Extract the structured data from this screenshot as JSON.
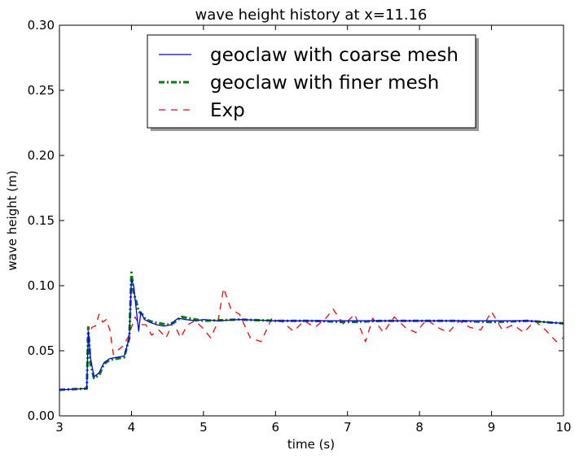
{
  "chart_data": {
    "type": "line",
    "title": "wave height history at x=11.16",
    "xlabel": "time (s)",
    "ylabel": "wave height (m)",
    "xlim": [
      3,
      10
    ],
    "ylim": [
      0.0,
      0.3
    ],
    "xticks": [
      "3",
      "4",
      "5",
      "6",
      "7",
      "8",
      "9",
      "10"
    ],
    "yticks": [
      "0.00",
      "0.05",
      "0.10",
      "0.15",
      "0.20",
      "0.25",
      "0.30"
    ],
    "grid": false,
    "legend_position": "top-center",
    "series": [
      {
        "name": "geoclaw with coarse mesh",
        "color": "#0000ff",
        "style": "solid",
        "x": [
          3.0,
          3.38,
          3.4,
          3.43,
          3.48,
          3.55,
          3.62,
          3.7,
          3.8,
          3.9,
          3.97,
          4.0,
          4.03,
          4.07,
          4.1,
          4.13,
          4.18,
          4.25,
          4.35,
          4.45,
          4.55,
          4.6,
          4.65,
          4.75,
          4.9,
          5.0,
          5.2,
          5.5,
          6.0,
          6.5,
          7.0,
          7.5,
          8.0,
          8.5,
          9.0,
          9.5,
          10.0
        ],
        "y": [
          0.02,
          0.021,
          0.065,
          0.045,
          0.03,
          0.033,
          0.041,
          0.044,
          0.045,
          0.046,
          0.06,
          0.105,
          0.1,
          0.08,
          0.065,
          0.08,
          0.074,
          0.072,
          0.07,
          0.069,
          0.07,
          0.073,
          0.075,
          0.074,
          0.073,
          0.074,
          0.073,
          0.074,
          0.073,
          0.073,
          0.073,
          0.073,
          0.073,
          0.073,
          0.073,
          0.073,
          0.071
        ]
      },
      {
        "name": "geoclaw with finer mesh",
        "color": "#008000",
        "style": "dash-dot",
        "x": [
          3.0,
          3.38,
          3.4,
          3.43,
          3.48,
          3.55,
          3.62,
          3.7,
          3.8,
          3.9,
          3.97,
          4.0,
          4.03,
          4.07,
          4.1,
          4.15,
          4.2,
          4.3,
          4.4,
          4.5,
          4.6,
          4.7,
          4.8,
          5.0,
          5.5,
          6.0,
          6.5,
          7.0,
          7.5,
          8.0,
          8.5,
          9.0,
          9.5,
          10.0
        ],
        "y": [
          0.02,
          0.021,
          0.068,
          0.04,
          0.029,
          0.031,
          0.04,
          0.043,
          0.044,
          0.045,
          0.06,
          0.11,
          0.095,
          0.087,
          0.08,
          0.078,
          0.074,
          0.072,
          0.071,
          0.07,
          0.072,
          0.076,
          0.075,
          0.073,
          0.074,
          0.073,
          0.073,
          0.072,
          0.073,
          0.073,
          0.073,
          0.072,
          0.073,
          0.071
        ]
      },
      {
        "name": "Exp",
        "color": "#ff0000",
        "style": "dashed",
        "x": [
          3.38,
          3.45,
          3.5,
          3.55,
          3.6,
          3.65,
          3.7,
          3.75,
          3.8,
          3.87,
          3.95,
          4.0,
          4.05,
          4.1,
          4.15,
          4.2,
          4.28,
          4.38,
          4.48,
          4.58,
          4.68,
          4.78,
          4.88,
          4.98,
          5.1,
          5.2,
          5.28,
          5.38,
          5.5,
          5.65,
          5.8,
          5.95,
          6.1,
          6.25,
          6.4,
          6.55,
          6.7,
          6.8,
          6.95,
          7.1,
          7.25,
          7.35,
          7.5,
          7.65,
          7.8,
          7.95,
          8.1,
          8.25,
          8.4,
          8.55,
          8.7,
          8.85,
          9.0,
          9.15,
          9.3,
          9.45,
          9.6,
          9.75,
          9.9,
          10.0
        ],
        "y": [
          0.058,
          0.068,
          0.069,
          0.078,
          0.072,
          0.074,
          0.066,
          0.047,
          0.05,
          0.053,
          0.06,
          0.068,
          0.076,
          0.071,
          0.07,
          0.07,
          0.062,
          0.066,
          0.06,
          0.072,
          0.06,
          0.07,
          0.073,
          0.068,
          0.06,
          0.072,
          0.098,
          0.082,
          0.078,
          0.06,
          0.057,
          0.075,
          0.072,
          0.065,
          0.073,
          0.068,
          0.075,
          0.082,
          0.07,
          0.078,
          0.057,
          0.075,
          0.064,
          0.076,
          0.068,
          0.064,
          0.074,
          0.068,
          0.064,
          0.073,
          0.068,
          0.066,
          0.08,
          0.066,
          0.07,
          0.064,
          0.073,
          0.066,
          0.057,
          0.06
        ]
      }
    ]
  }
}
